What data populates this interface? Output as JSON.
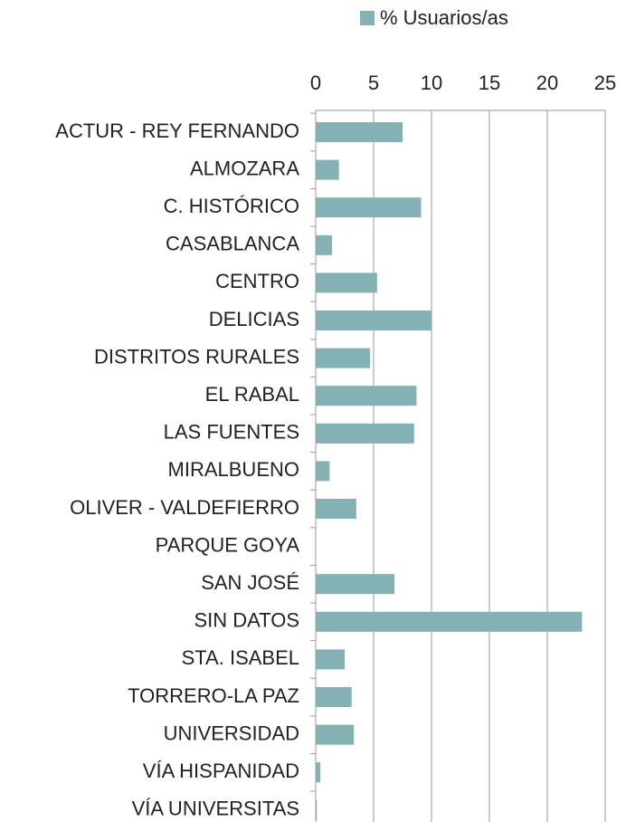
{
  "chart_data": {
    "type": "barh",
    "legend": "% Usuarios/as",
    "color": "#84b1b3",
    "categories": [
      "ACTUR - REY FERNANDO",
      "ALMOZARA",
      "C. HISTÓRICO",
      "CASABLANCA",
      "CENTRO",
      "DELICIAS",
      "DISTRITOS RURALES",
      "EL RABAL",
      "LAS FUENTES",
      "MIRALBUENO",
      "OLIVER - VALDEFIERRO",
      "PARQUE GOYA",
      "SAN JOSÉ",
      "SIN DATOS",
      "STA. ISABEL",
      "TORRERO-LA PAZ",
      "UNIVERSIDAD",
      "VÍA HISPANIDAD",
      "VÍA UNIVERSITAS"
    ],
    "values": [
      7.5,
      2.0,
      9.1,
      1.4,
      5.3,
      10.0,
      4.7,
      8.7,
      8.5,
      1.2,
      3.5,
      0,
      6.8,
      23.0,
      2.5,
      3.1,
      3.3,
      0.4,
      0.1
    ],
    "xlim": [
      0,
      25
    ],
    "xticks": [
      0,
      5,
      10,
      15,
      20,
      25
    ],
    "grid": true
  }
}
